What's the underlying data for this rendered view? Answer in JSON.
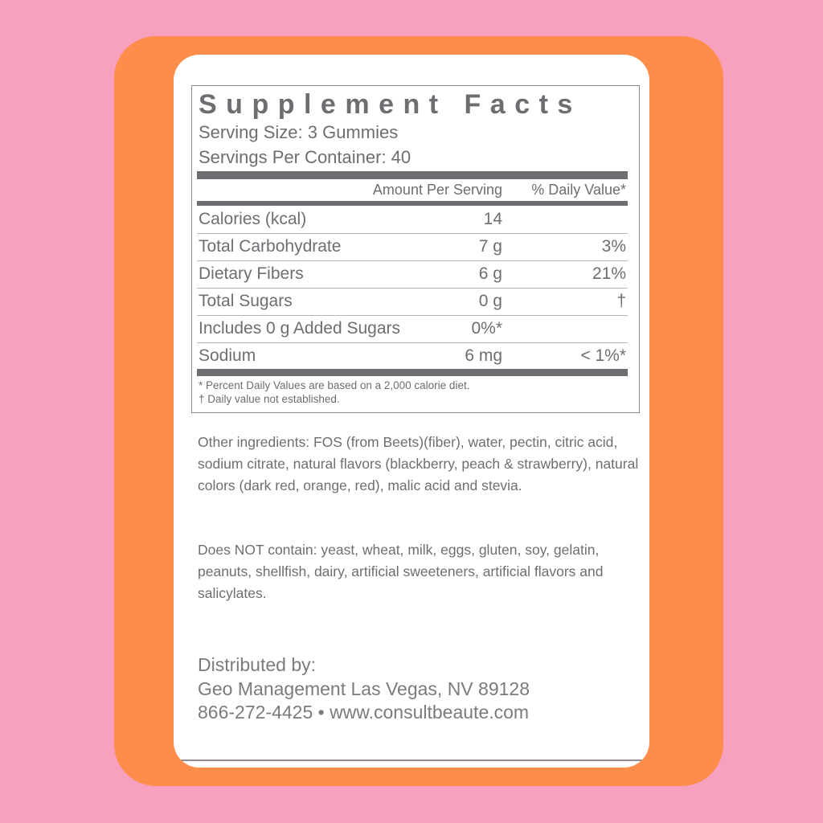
{
  "colors": {
    "background": "#f7a1bf",
    "card": "#fe8c4a",
    "panel": "#ffffff",
    "text": "#6d6e72"
  },
  "facts": {
    "title": "Supplement Facts",
    "serving_size": "Serving Size: 3 Gummies",
    "servings_per_container": "Servings Per Container: 40",
    "header_amount": "Amount Per Serving",
    "header_dv": "% Daily Value*",
    "rows": [
      {
        "label": "Calories (kcal)",
        "amount": "14",
        "dv": ""
      },
      {
        "label": "Total Carbohydrate",
        "amount": "7 g",
        "dv": "3%"
      },
      {
        "label": "Dietary Fibers",
        "amount": "6 g",
        "dv": "21%"
      },
      {
        "label": "Total Sugars",
        "amount": "0 g",
        "dv": "†"
      },
      {
        "label": "Includes 0 g Added Sugars",
        "amount": "0%*",
        "dv": ""
      },
      {
        "label": "Sodium",
        "amount": "6 mg",
        "dv": "< 1%*"
      }
    ],
    "footnote1": "* Percent Daily Values are based on a 2,000 calorie diet.",
    "footnote2": "† Daily value not established."
  },
  "other_ingredients": "Other ingredients: FOS (from Beets)(fiber), water, pectin, citric acid, sodium citrate, natural flavors (blackberry, peach & strawberry), natural colors (dark red, orange, red), malic acid and stevia.",
  "does_not_contain": "Does NOT contain: yeast, wheat, milk, eggs, gluten, soy, gelatin, peanuts, shellfish, dairy, artificial sweeteners, artificial flavors and salicylates.",
  "distributor": {
    "label": "Distributed by:",
    "address": "Geo Management Las Vegas, NV  89128",
    "contact": "866-272-4425 • www.consultbeaute.com"
  }
}
